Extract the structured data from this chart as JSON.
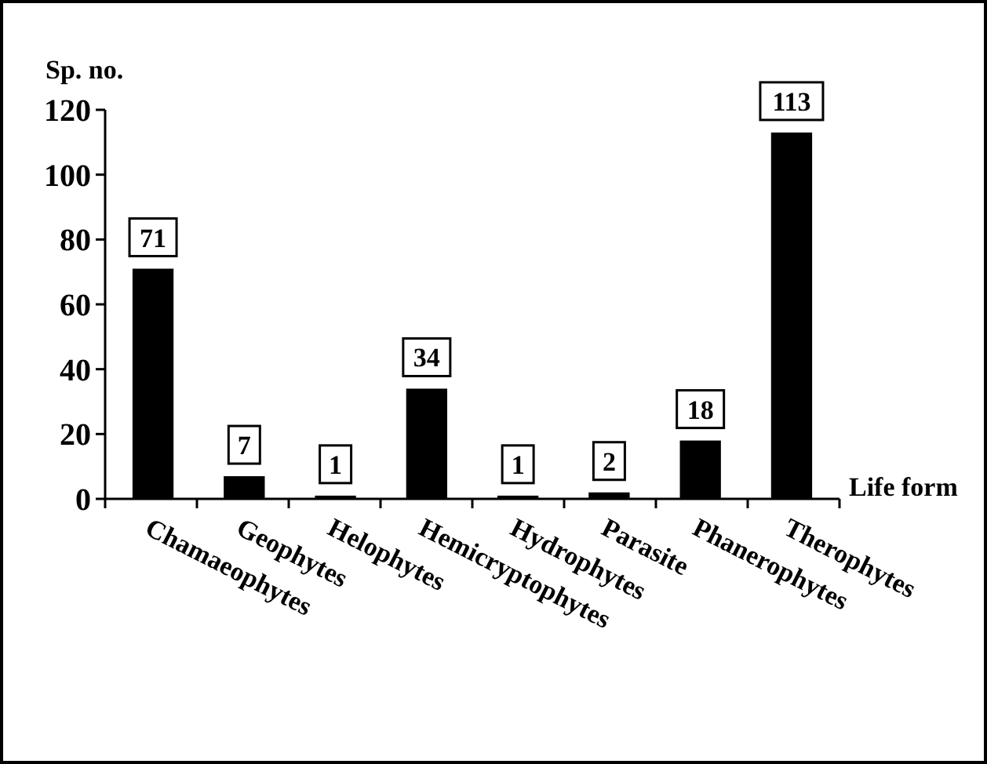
{
  "chart_data": {
    "type": "bar",
    "ylabel": "Sp. no.",
    "xlabel": "Life form",
    "categories": [
      "Chamaeophytes",
      "Geophytes",
      "Helophytes",
      "Hemicryptophytes",
      "Hydrophytes",
      "Parasite",
      "Phanerophytes",
      "Therophytes"
    ],
    "values": [
      71,
      7,
      1,
      34,
      1,
      2,
      18,
      113
    ],
    "color": "#000000",
    "ylim": [
      0,
      120
    ],
    "yticks": [
      0,
      20,
      40,
      60,
      80,
      100,
      120
    ],
    "grid": false,
    "data_labels": true
  }
}
